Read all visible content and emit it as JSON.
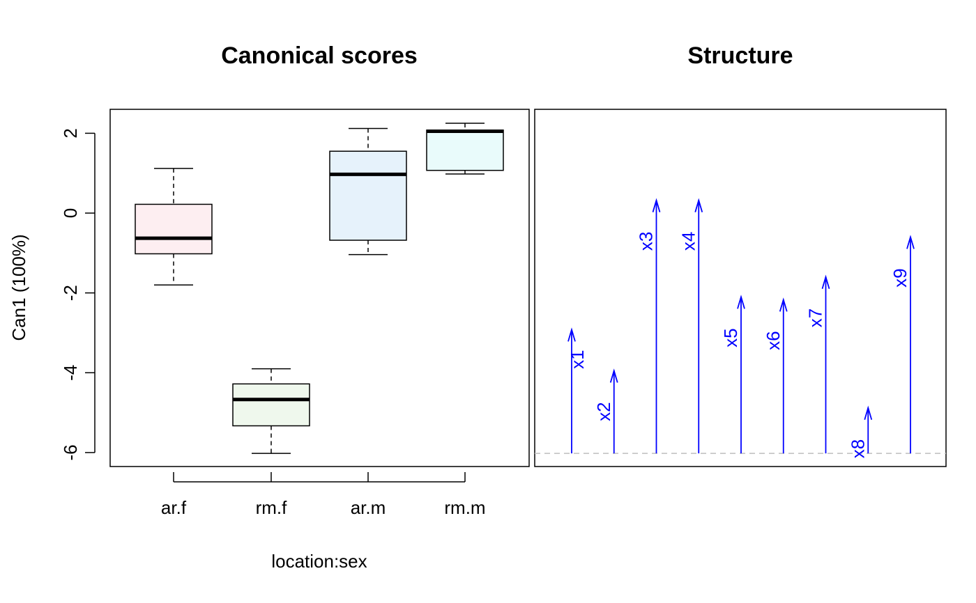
{
  "chart_data": [
    {
      "type": "box",
      "title": "Canonical scores",
      "xlabel": "location:sex",
      "ylabel": "Can1 (100%)",
      "ylim": [
        -6.35,
        2.6
      ],
      "yticks": [
        -6,
        -4,
        -2,
        0,
        2
      ],
      "categories": [
        "ar.f",
        "rm.f",
        "ar.m",
        "rm.m"
      ],
      "boxes": [
        {
          "category": "ar.f",
          "min": -1.8,
          "q1": -1.02,
          "median": -0.63,
          "q3": 0.22,
          "max": 1.12,
          "fill": "#fdeef1"
        },
        {
          "category": "rm.f",
          "min": -6.02,
          "q1": -5.33,
          "median": -4.67,
          "q3": -4.28,
          "max": -3.9,
          "fill": "#eff8ed"
        },
        {
          "category": "ar.m",
          "min": -1.04,
          "q1": -0.68,
          "median": 0.97,
          "q3": 1.55,
          "max": 2.12,
          "fill": "#e6f2fb"
        },
        {
          "category": "rm.m",
          "min": 0.98,
          "q1": 1.07,
          "median": 2.05,
          "q3": 2.08,
          "max": 2.25,
          "fill": "#e9fbfb"
        }
      ]
    },
    {
      "type": "vector",
      "title": "Structure",
      "ylim": [
        -6.35,
        2.6
      ],
      "baseline": -6.02,
      "color": "#0000ff",
      "vectors": [
        {
          "name": "x1",
          "y": -2.92
        },
        {
          "name": "x2",
          "y": -3.95
        },
        {
          "name": "x3",
          "y": 0.32
        },
        {
          "name": "x4",
          "y": 0.32
        },
        {
          "name": "x5",
          "y": -2.1
        },
        {
          "name": "x6",
          "y": -2.17
        },
        {
          "name": "x7",
          "y": -1.6
        },
        {
          "name": "x8",
          "y": -4.88
        },
        {
          "name": "x9",
          "y": -0.6
        }
      ]
    }
  ]
}
